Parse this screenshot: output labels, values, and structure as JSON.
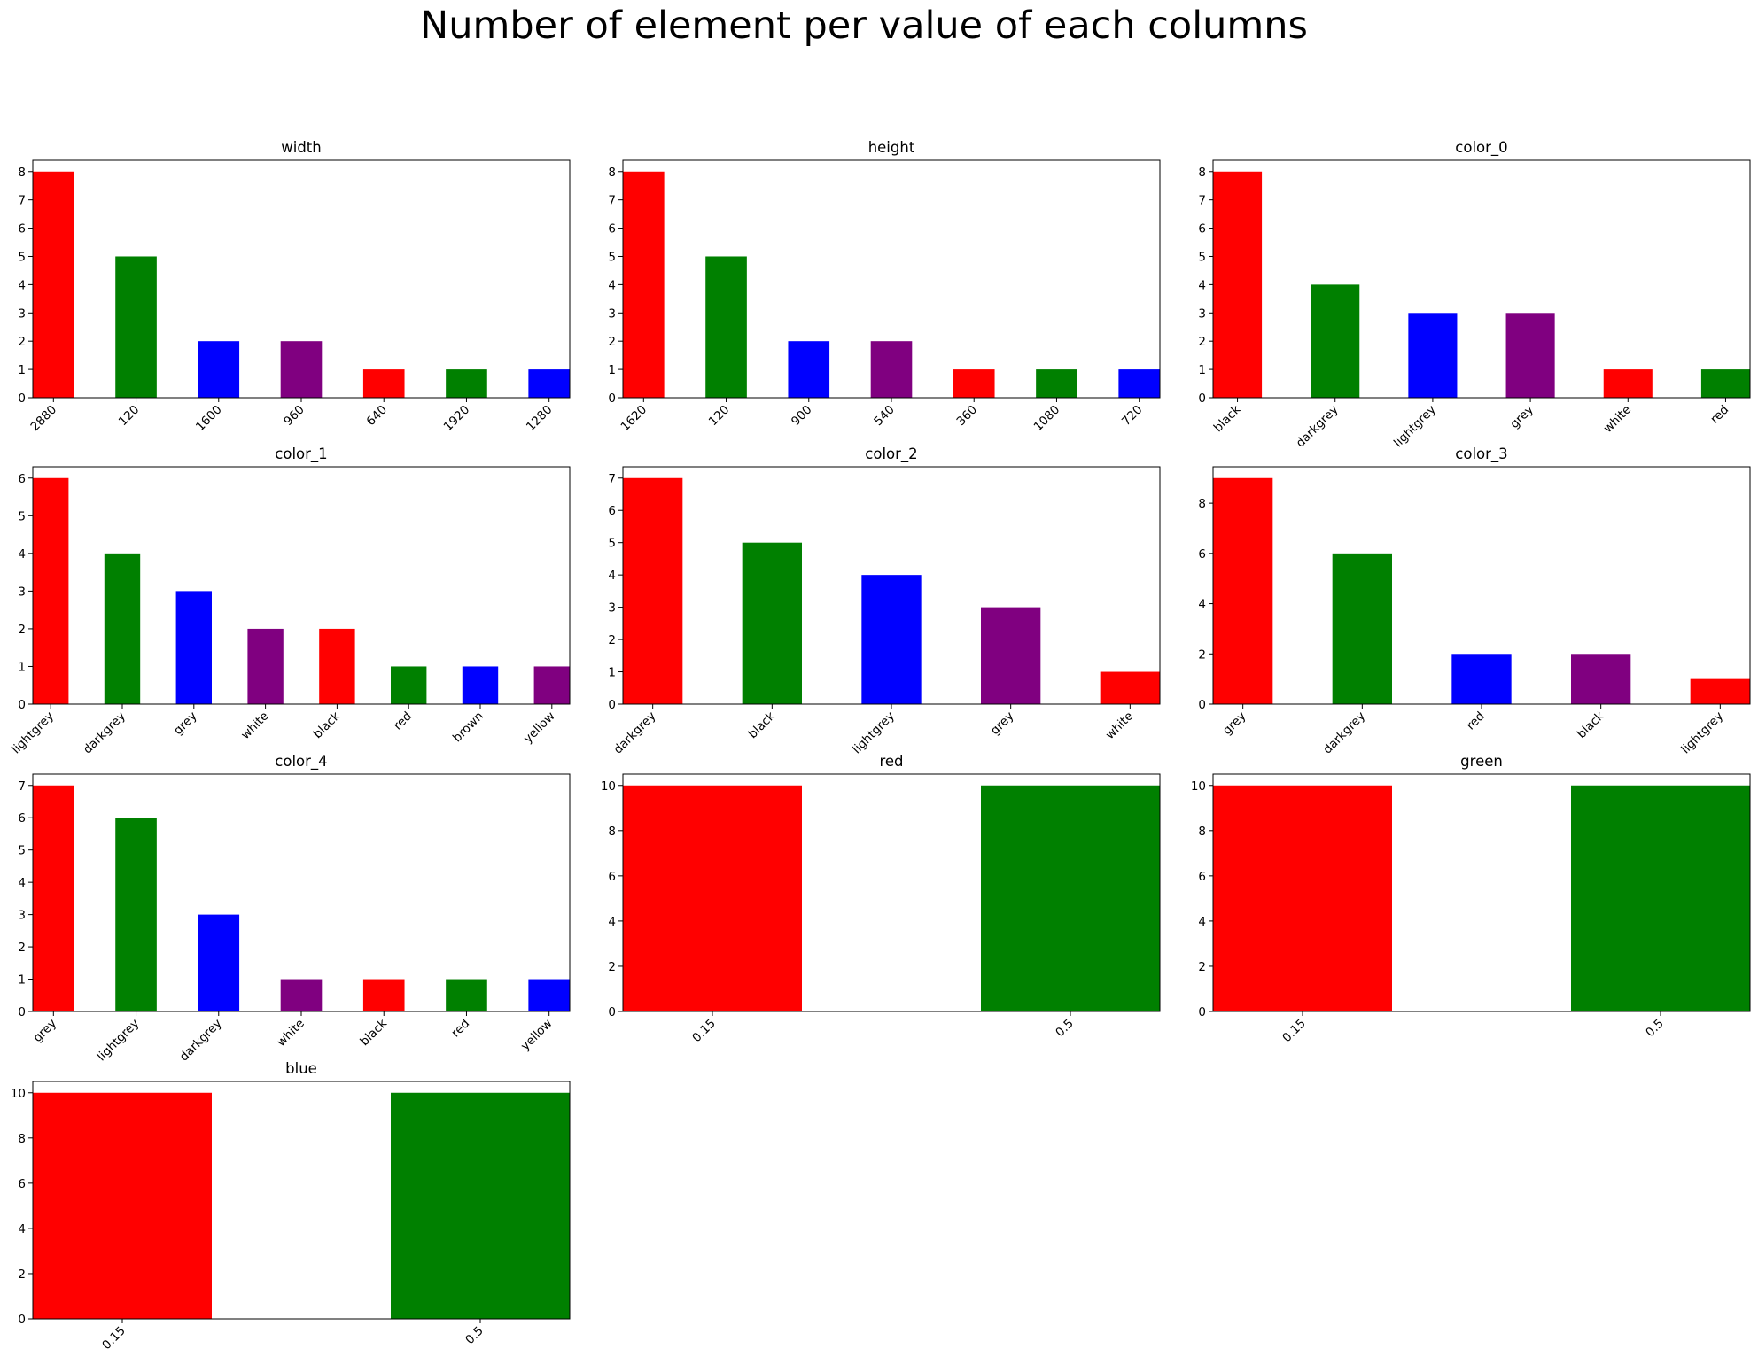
{
  "figure": {
    "suptitle": "Number of element per value of each columns"
  },
  "palette": [
    "#ff0000",
    "#008000",
    "#0000ff",
    "#800080"
  ],
  "chart_data": [
    {
      "type": "bar",
      "title": "width",
      "categories": [
        "2880",
        "120",
        "1600",
        "960",
        "640",
        "1920",
        "1280"
      ],
      "values": [
        8,
        5,
        2,
        2,
        1,
        1,
        1
      ],
      "ylim": [
        0,
        8.4
      ],
      "yticks": [
        0,
        1,
        2,
        3,
        4,
        5,
        6,
        7,
        8
      ]
    },
    {
      "type": "bar",
      "title": "height",
      "categories": [
        "1620",
        "120",
        "900",
        "540",
        "360",
        "1080",
        "720"
      ],
      "values": [
        8,
        5,
        2,
        2,
        1,
        1,
        1
      ],
      "ylim": [
        0,
        8.4
      ],
      "yticks": [
        0,
        1,
        2,
        3,
        4,
        5,
        6,
        7,
        8
      ]
    },
    {
      "type": "bar",
      "title": "color_0",
      "categories": [
        "black",
        "darkgrey",
        "lightgrey",
        "grey",
        "white",
        "red"
      ],
      "values": [
        8,
        4,
        3,
        3,
        1,
        1
      ],
      "ylim": [
        0,
        8.4
      ],
      "yticks": [
        0,
        1,
        2,
        3,
        4,
        5,
        6,
        7,
        8
      ]
    },
    {
      "type": "bar",
      "title": "color_1",
      "categories": [
        "lightgrey",
        "darkgrey",
        "grey",
        "white",
        "black",
        "red",
        "brown",
        "yellow"
      ],
      "values": [
        6,
        4,
        3,
        2,
        2,
        1,
        1,
        1
      ],
      "ylim": [
        0,
        6.3
      ],
      "yticks": [
        0,
        1,
        2,
        3,
        4,
        5,
        6
      ]
    },
    {
      "type": "bar",
      "title": "color_2",
      "categories": [
        "darkgrey",
        "black",
        "lightgrey",
        "grey",
        "white"
      ],
      "values": [
        7,
        5,
        4,
        3,
        1
      ],
      "ylim": [
        0,
        7.35
      ],
      "yticks": [
        0,
        1,
        2,
        3,
        4,
        5,
        6,
        7
      ]
    },
    {
      "type": "bar",
      "title": "color_3",
      "categories": [
        "grey",
        "darkgrey",
        "red",
        "black",
        "lightgrey"
      ],
      "values": [
        9,
        6,
        2,
        2,
        1
      ],
      "ylim": [
        0,
        9.45
      ],
      "yticks": [
        0,
        2,
        4,
        6,
        8
      ]
    },
    {
      "type": "bar",
      "title": "color_4",
      "categories": [
        "grey",
        "lightgrey",
        "darkgrey",
        "white",
        "black",
        "red",
        "yellow"
      ],
      "values": [
        7,
        6,
        3,
        1,
        1,
        1,
        1
      ],
      "ylim": [
        0,
        7.35
      ],
      "yticks": [
        0,
        1,
        2,
        3,
        4,
        5,
        6,
        7
      ]
    },
    {
      "type": "bar",
      "title": "red",
      "categories": [
        "0.15",
        "0.5"
      ],
      "values": [
        10,
        10
      ],
      "ylim": [
        0,
        10.5
      ],
      "yticks": [
        0,
        2,
        4,
        6,
        8,
        10
      ]
    },
    {
      "type": "bar",
      "title": "green",
      "categories": [
        "0.15",
        "0.5"
      ],
      "values": [
        10,
        10
      ],
      "ylim": [
        0,
        10.5
      ],
      "yticks": [
        0,
        2,
        4,
        6,
        8,
        10
      ]
    },
    {
      "type": "bar",
      "title": "blue",
      "categories": [
        "0.15",
        "0.5"
      ],
      "values": [
        10,
        10
      ],
      "ylim": [
        0,
        10.5
      ],
      "yticks": [
        0,
        2,
        4,
        6,
        8,
        10
      ]
    }
  ]
}
